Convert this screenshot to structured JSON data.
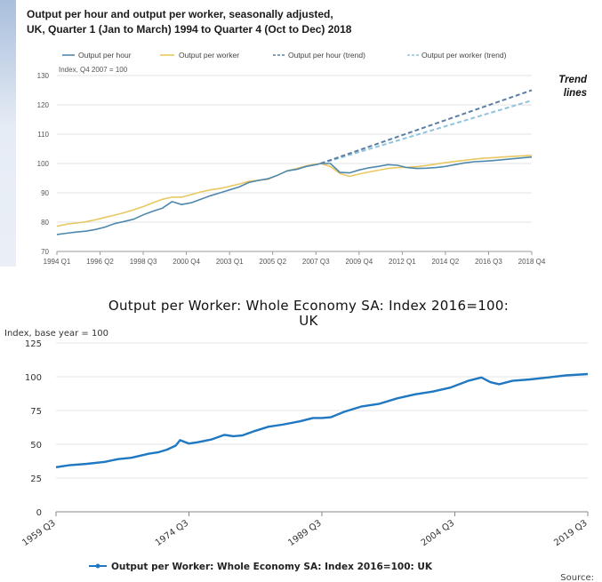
{
  "chart_data": [
    {
      "type": "line",
      "title": "Output per hour and output per worker, seasonally adjusted, UK, Quarter 1 (Jan to March) 1994 to Quarter 4 (Oct to Dec) 2018",
      "title_lines": [
        "Output per hour and output per worker, seasonally adjusted,",
        "UK, Quarter 1 (Jan to March) 1994 to Quarter 4 (Oct to Dec) 2018"
      ],
      "ylabel": "Index, Q4 2007 = 100",
      "ylim": [
        70,
        130
      ],
      "yticks": [
        70,
        80,
        90,
        100,
        110,
        120,
        130
      ],
      "xlim": [
        1994.0,
        2018.75
      ],
      "xticks": [
        {
          "x": 1994.0,
          "label": "1994 Q1"
        },
        {
          "x": 1996.25,
          "label": "1996 Q2"
        },
        {
          "x": 1998.5,
          "label": "1998 Q3"
        },
        {
          "x": 2000.75,
          "label": "2000 Q4"
        },
        {
          "x": 2003.0,
          "label": "2003 Q1"
        },
        {
          "x": 2005.25,
          "label": "2005 Q2"
        },
        {
          "x": 2007.5,
          "label": "2007 Q3"
        },
        {
          "x": 2009.75,
          "label": "2009 Q4"
        },
        {
          "x": 2012.0,
          "label": "2012 Q1"
        },
        {
          "x": 2014.25,
          "label": "2014 Q2"
        },
        {
          "x": 2016.5,
          "label": "2016 Q3"
        },
        {
          "x": 2018.75,
          "label": "2018 Q4"
        }
      ],
      "grid": true,
      "legend_position": "top",
      "annotation": "Trend lines",
      "series": [
        {
          "name": "Output per hour",
          "color": "#4f88ad",
          "dash": "solid",
          "x": [
            1994.0,
            1994.5,
            1995.0,
            1995.5,
            1996.0,
            1996.5,
            1997.0,
            1997.5,
            1998.0,
            1998.5,
            1999.0,
            1999.5,
            2000.0,
            2000.5,
            2001.0,
            2001.5,
            2002.0,
            2002.5,
            2003.0,
            2003.5,
            2004.0,
            2004.5,
            2005.0,
            2005.5,
            2006.0,
            2006.5,
            2007.0,
            2007.5,
            2007.75,
            2008.25,
            2008.75,
            2009.25,
            2009.75,
            2010.25,
            2010.75,
            2011.25,
            2011.75,
            2012.25,
            2012.75,
            2013.25,
            2013.75,
            2014.25,
            2014.75,
            2015.25,
            2015.75,
            2016.25,
            2016.75,
            2017.25,
            2017.75,
            2018.25,
            2018.75
          ],
          "y": [
            75.8,
            76.2,
            76.6,
            76.9,
            77.5,
            78.3,
            79.5,
            80.2,
            81.0,
            82.5,
            83.7,
            84.8,
            87.0,
            86.0,
            86.6,
            87.8,
            89.0,
            90.0,
            91.0,
            92.0,
            93.5,
            94.2,
            94.8,
            96.0,
            97.5,
            98.0,
            99.0,
            99.6,
            100.0,
            100.0,
            97.0,
            96.8,
            97.8,
            98.5,
            99.0,
            99.6,
            99.4,
            98.6,
            98.3,
            98.4,
            98.6,
            99.0,
            99.6,
            100.2,
            100.6,
            100.8,
            101.0,
            101.3,
            101.6,
            101.9,
            102.2
          ]
        },
        {
          "name": "Output per worker",
          "color": "#e8c860",
          "dash": "solid",
          "x": [
            1994.0,
            1994.5,
            1995.0,
            1995.5,
            1996.0,
            1996.5,
            1997.0,
            1997.5,
            1998.0,
            1998.5,
            1999.0,
            1999.5,
            2000.0,
            2000.5,
            2001.0,
            2001.5,
            2002.0,
            2002.5,
            2003.0,
            2003.5,
            2004.0,
            2004.5,
            2005.0,
            2005.5,
            2006.0,
            2006.5,
            2007.0,
            2007.5,
            2007.75,
            2008.25,
            2008.75,
            2009.25,
            2009.75,
            2010.25,
            2010.75,
            2011.25,
            2011.75,
            2012.25,
            2012.75,
            2013.25,
            2013.75,
            2014.25,
            2014.75,
            2015.25,
            2015.75,
            2016.25,
            2016.75,
            2017.25,
            2017.75,
            2018.25,
            2018.75
          ],
          "y": [
            78.6,
            79.3,
            79.7,
            80.1,
            80.8,
            81.6,
            82.4,
            83.2,
            84.2,
            85.3,
            86.6,
            87.8,
            88.5,
            88.5,
            89.4,
            90.3,
            91.0,
            91.5,
            92.2,
            93.0,
            93.9,
            94.3,
            94.6,
            96.0,
            97.5,
            98.3,
            99.2,
            99.8,
            100.0,
            99.0,
            96.6,
            95.6,
            96.4,
            97.1,
            97.7,
            98.3,
            98.6,
            98.7,
            98.9,
            99.3,
            99.8,
            100.3,
            100.7,
            101.1,
            101.5,
            101.8,
            102.0,
            102.2,
            102.4,
            102.6,
            102.8
          ]
        },
        {
          "name": "Output per hour (trend)",
          "color": "#5b7fa3",
          "dash": "dashed",
          "x": [
            2007.75,
            2018.75
          ],
          "y": [
            100.0,
            125.0
          ]
        },
        {
          "name": "Output per worker (trend)",
          "color": "#8fc3de",
          "dash": "dashed",
          "x": [
            2007.75,
            2018.75
          ],
          "y": [
            100.0,
            121.5
          ]
        }
      ]
    },
    {
      "type": "line",
      "title": "Output per Worker: Whole Economy SA: Index 2016=100: UK",
      "title_lines": [
        "Output per Worker: Whole Economy SA: Index 2016=100:",
        "UK"
      ],
      "ylabel": "Index, base year = 100",
      "ylim": [
        0,
        125
      ],
      "yticks": [
        0,
        25,
        50,
        75,
        100,
        125
      ],
      "xlim": [
        1959.5,
        2019.5
      ],
      "xticks": [
        {
          "x": 1959.5,
          "label": "1959 Q3"
        },
        {
          "x": 1974.5,
          "label": "1974 Q3"
        },
        {
          "x": 1989.5,
          "label": "1989 Q3"
        },
        {
          "x": 2004.5,
          "label": "2004 Q3"
        },
        {
          "x": 2019.5,
          "label": "2019 Q3"
        }
      ],
      "grid": true,
      "legend_position": "bottom",
      "series": [
        {
          "name": "Output per Worker: Whole Economy SA: Index 2016=100: UK",
          "color": "#1f78c1",
          "x": [
            1959.5,
            1961,
            1963,
            1965,
            1966.5,
            1968,
            1970,
            1971,
            1972,
            1973,
            1973.5,
            1974.5,
            1975.5,
            1977,
            1978.5,
            1979.5,
            1980.5,
            1982,
            1983.5,
            1985,
            1987,
            1988.5,
            1989.5,
            1990.5,
            1992,
            1994,
            1996,
            1998,
            2000,
            2002,
            2004,
            2006,
            2007.5,
            2008.5,
            2009.5,
            2011,
            2013,
            2015,
            2017,
            2019.5
          ],
          "y": [
            33,
            34.5,
            35.5,
            37,
            39,
            40,
            43,
            44,
            46,
            49,
            53,
            50.5,
            51.5,
            53.5,
            57,
            56,
            56.5,
            60,
            63,
            64.5,
            67,
            69.5,
            69.5,
            70,
            74,
            78,
            80,
            84,
            87,
            89,
            92,
            97,
            99.5,
            96,
            94.5,
            97,
            98,
            99.5,
            101,
            102
          ]
        }
      ],
      "legend_label": "Output per Worker: Whole Economy SA: Index 2016=100: UK",
      "source_label": "Source:"
    }
  ]
}
